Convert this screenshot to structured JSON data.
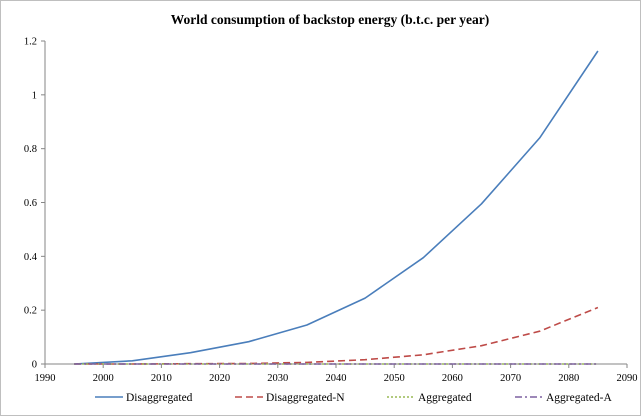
{
  "chart_data": {
    "type": "line",
    "title": "World consumption of backstop energy (b.t.c. per year)",
    "xlabel": "",
    "ylabel": "",
    "xlim": [
      1990,
      2090
    ],
    "ylim": [
      0,
      1.2
    ],
    "x_ticks": [
      1990,
      2000,
      2010,
      2020,
      2030,
      2040,
      2050,
      2060,
      2070,
      2080,
      2090
    ],
    "y_ticks": [
      0,
      0.2,
      0.4,
      0.6,
      0.8,
      1,
      1.2
    ],
    "y_tick_labels": [
      "0",
      "0.2",
      "0.4",
      "0.6",
      "0.8",
      "1",
      "1.2"
    ],
    "grid": false,
    "legend_position": "bottom",
    "x": [
      1995,
      2005,
      2015,
      2025,
      2035,
      2045,
      2055,
      2065,
      2075,
      2085
    ],
    "series": [
      {
        "name": "Disaggregated",
        "color": "#4a7ebb",
        "dash": "solid",
        "values": [
          0,
          0.012,
          0.042,
          0.083,
          0.145,
          0.245,
          0.395,
          0.595,
          0.84,
          1.163
        ]
      },
      {
        "name": "Disaggregated-N",
        "color": "#be4b48",
        "dash": "dash",
        "values": [
          0,
          0,
          0.001,
          0.002,
          0.006,
          0.016,
          0.034,
          0.068,
          0.122,
          0.21
        ]
      },
      {
        "name": "Aggregated",
        "color": "#98b954",
        "dash": "dot",
        "values": [
          0,
          0,
          0,
          0,
          0,
          0,
          0,
          0,
          0,
          0
        ]
      },
      {
        "name": "Aggregated-A",
        "color": "#7d60a0",
        "dash": "dashdot",
        "values": [
          0,
          0,
          0,
          0,
          0,
          0,
          0,
          0,
          0,
          0
        ]
      }
    ]
  }
}
